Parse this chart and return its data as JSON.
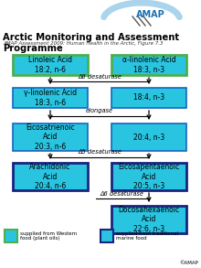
{
  "title": "Arctic Monitoring and Assessment Programme",
  "subtitle": "AMAP Assessment 2009: Human Health in the Arctic, Figure 7.3",
  "bg_color": "#ffffff",
  "box_cyan": "#29c4e0",
  "box_green_border": "#4caf50",
  "box_blue_border": "#1a237e",
  "boxes": [
    {
      "id": "linoleic",
      "col": "L",
      "row": 0,
      "label": "Linoleic Acid\n18:2, n-6",
      "border": "green"
    },
    {
      "id": "alpha_linolenic",
      "col": "R",
      "row": 0,
      "label": "α-linolenic Acid\n18:3, n-3",
      "border": "green"
    },
    {
      "id": "gamma_linolenic",
      "col": "L",
      "row": 1,
      "label": "γ-linolenic Acid\n18:3, n-6",
      "border": "none"
    },
    {
      "id": "18_4_n3",
      "col": "R",
      "row": 1,
      "label": "18:4, n-3",
      "border": "none"
    },
    {
      "id": "eicosatrienoic",
      "col": "L",
      "row": 2,
      "label": "Eicosatrienoic\nAcid\n20:3, n-6",
      "border": "none"
    },
    {
      "id": "20_4_n3",
      "col": "R",
      "row": 2,
      "label": "20:4, n-3",
      "border": "none"
    },
    {
      "id": "arachidonic",
      "col": "L",
      "row": 3,
      "label": "Arachidonic\nAcid\n20:4, n-6",
      "border": "blue"
    },
    {
      "id": "eicosapentaenoic",
      "col": "R",
      "row": 3,
      "label": "Eicosapentaenoic\nAcid\n20:5, n-3",
      "border": "blue"
    },
    {
      "id": "docosahexaenoic",
      "col": "R",
      "row": 4,
      "label": "Docosahexaenoic\nAcid\n22:6, n-3",
      "border": "blue"
    }
  ],
  "enzymes": [
    {
      "text": "Δ6 desaturase",
      "between_rows": [
        0,
        1
      ]
    },
    {
      "text": "elongase",
      "between_rows": [
        1,
        2
      ]
    },
    {
      "text": "Δ5 desaturase",
      "between_rows": [
        2,
        3
      ]
    },
    {
      "text": "Δ6 desaturase",
      "between_rows": [
        3,
        4
      ],
      "col": "R"
    }
  ],
  "copyright": "©AMAP"
}
